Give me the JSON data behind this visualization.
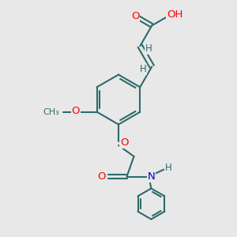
{
  "bg_color": "#e8e8e8",
  "bond_color": "#2d6b6b",
  "bond_width": 1.5,
  "atom_colors": {
    "O": "#ff0000",
    "N": "#0000cd",
    "C": "#2d6b6b",
    "H": "#2d6b6b"
  },
  "font_size": 8.5,
  "font_family": "DejaVu Sans"
}
